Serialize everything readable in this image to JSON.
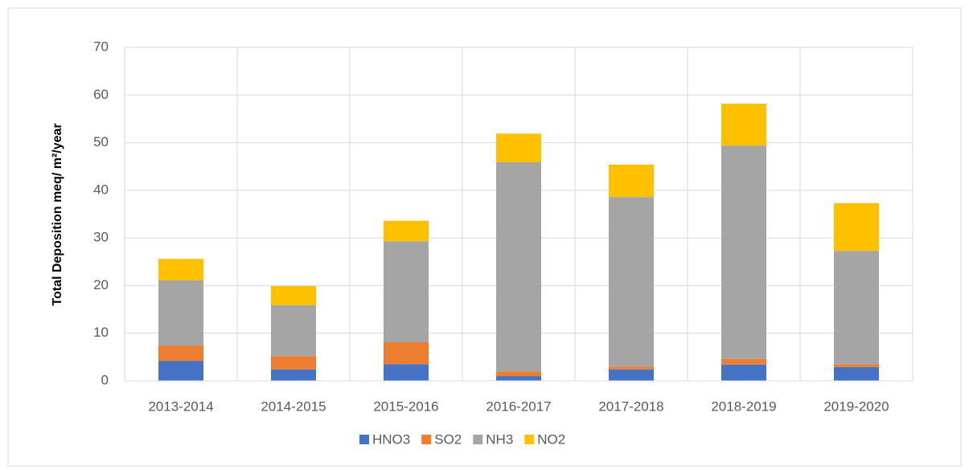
{
  "chart_data": {
    "type": "stacked_bar",
    "y_label": "Total Deposition meq/ m²/year",
    "categories": [
      "2013-2014",
      "2014-2015",
      "2015-2016",
      "2016-2017",
      "2017-2018",
      "2018-2019",
      "2019-2020"
    ],
    "series": [
      {
        "name": "HNO3",
        "color": "#4472c4",
        "values": [
          4.2,
          2.4,
          3.5,
          1.0,
          2.4,
          3.4,
          2.9
        ]
      },
      {
        "name": "SO2",
        "color": "#ed7d31",
        "values": [
          3.2,
          2.8,
          4.6,
          1.0,
          0.6,
          1.2,
          0.6
        ]
      },
      {
        "name": "NH3",
        "color": "#a5a5a5",
        "values": [
          13.7,
          10.7,
          21.2,
          43.9,
          35.6,
          44.8,
          23.8
        ]
      },
      {
        "name": "NO2",
        "color": "#ffc000",
        "values": [
          4.5,
          4.0,
          4.3,
          6.0,
          6.8,
          8.8,
          10.0
        ]
      }
    ],
    "ylim": [
      0,
      70
    ],
    "yticks": [
      0,
      10,
      20,
      30,
      40,
      50,
      60,
      70
    ],
    "grid": true,
    "legend": "bottom"
  }
}
